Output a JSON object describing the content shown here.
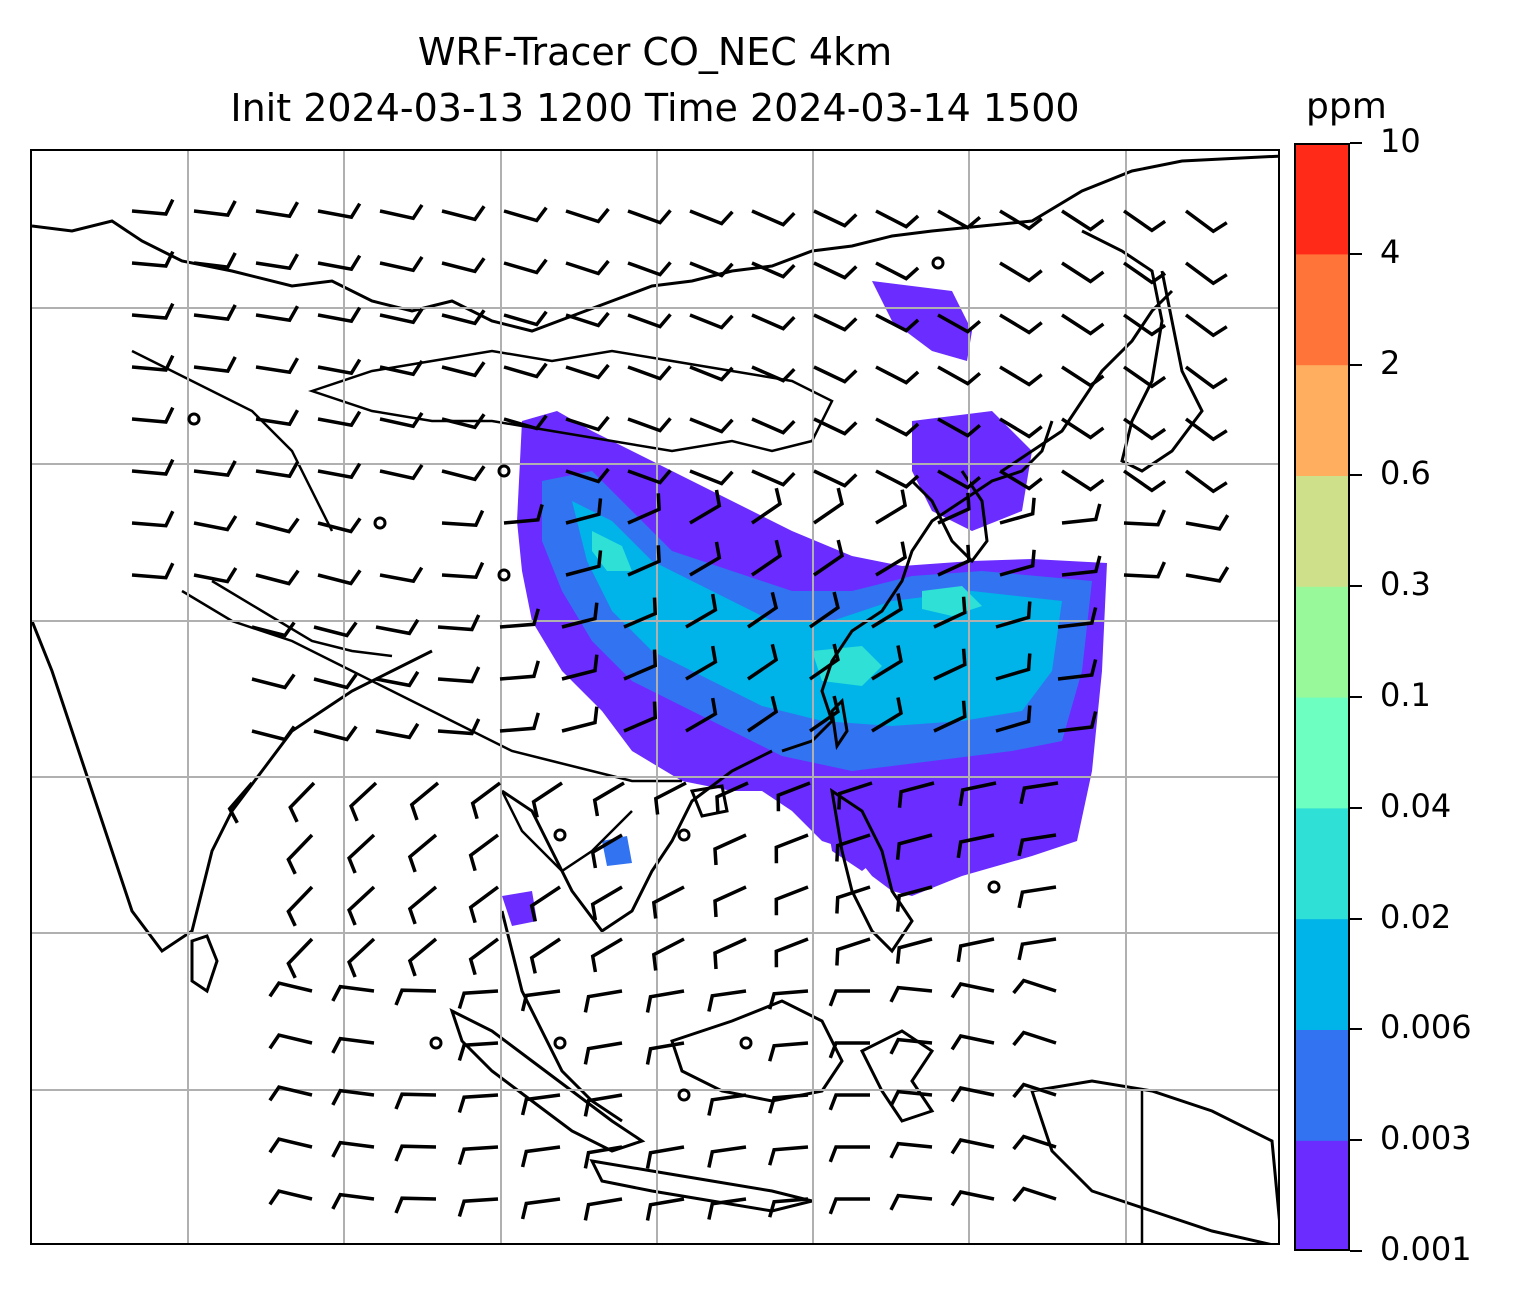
{
  "title": {
    "line1": "WRF-Tracer CO_NEC 4km",
    "line2": "Init 2024-03-13 1200 Time 2024-03-14 1500"
  },
  "colorbar": {
    "unit": "ppm",
    "levels": [
      "0.001",
      "0.003",
      "0.006",
      "0.02",
      "0.04",
      "0.1",
      "0.3",
      "0.6",
      "2",
      "4",
      "10"
    ],
    "colors": [
      "#6a2cff",
      "#3273f2",
      "#00b3e8",
      "#2ee0d6",
      "#6dffc1",
      "#98f99a",
      "#cfe08a",
      "#ffae60",
      "#ff7439",
      "#ff2a18"
    ]
  },
  "map": {
    "features": [
      "coastlines",
      "country-borders",
      "lat-lon-gridlines",
      "wind-barbs",
      "co-tracer-concentration"
    ],
    "concentration_colors": {
      "low": "#6a2cff",
      "mid_low": "#3273f2",
      "mid": "#00b3e8",
      "high": "#2ee0d6"
    }
  }
}
